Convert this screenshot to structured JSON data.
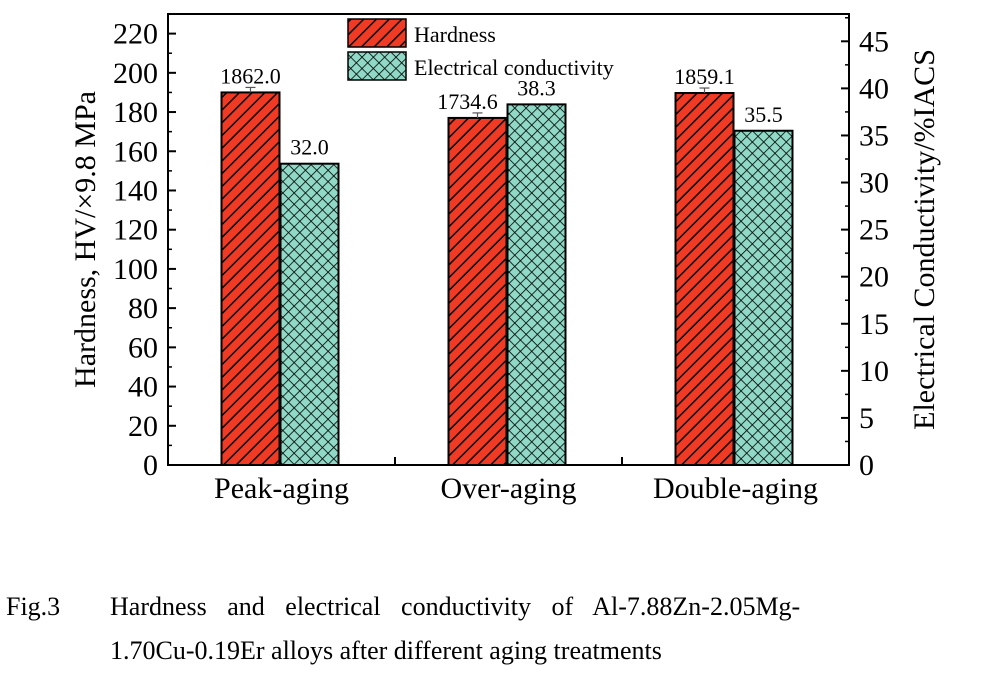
{
  "chart_data": {
    "type": "bar",
    "categories": [
      "Peak-aging",
      "Over-aging",
      "Double-aging"
    ],
    "series": [
      {
        "name": "Hardness",
        "axis": "left",
        "values": [
          190.0,
          177.0,
          189.7
        ],
        "data_labels": [
          "1862.0",
          "1734.6",
          "1859.1"
        ],
        "color": "#f03a24",
        "pattern": "diagonal-hatch"
      },
      {
        "name": "Electrical conductivity",
        "axis": "right",
        "values": [
          32.0,
          38.3,
          35.5
        ],
        "data_labels": [
          "32.0",
          "38.3",
          "35.5"
        ],
        "color": "#8fd9c6",
        "pattern": "crosshatch"
      }
    ],
    "ylabel": "Hardness, HV/×9.8 MPa",
    "ylim": [
      0,
      230
    ],
    "yticks": [
      0,
      20,
      40,
      60,
      80,
      100,
      120,
      140,
      160,
      180,
      200,
      220
    ],
    "y2label": "Electrical Conductivity/%IACS",
    "y2lim": [
      0,
      47.9
    ],
    "y2ticks": [
      0,
      5,
      10,
      15,
      20,
      25,
      30,
      35,
      40,
      45
    ],
    "legend_position": "top-center",
    "grid": false
  },
  "caption": {
    "label": "Fig.3",
    "line1": "Hardness and electrical conductivity of Al-7.88Zn-2.05Mg-",
    "line2": "1.70Cu-0.19Er alloys after different aging treatments"
  }
}
